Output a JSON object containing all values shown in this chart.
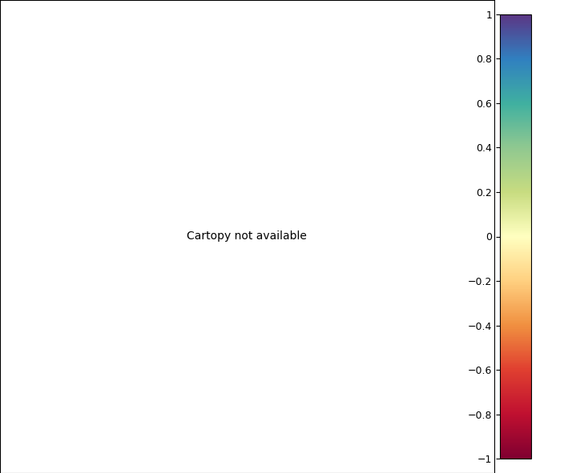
{
  "title": "",
  "colorbar_label": "",
  "vmin": -1,
  "vmax": 1,
  "colorbar_ticks": [
    1,
    0.8,
    0.6,
    0.4,
    0.2,
    0,
    -0.2,
    -0.4,
    -0.6,
    -0.8,
    -1
  ],
  "colorbar_ticklabels": [
    "1",
    "0.8",
    "0.6",
    "0.4",
    "0.2",
    "0",
    "−0.2",
    "−0.4",
    "−0.6",
    "−0.8",
    "−1"
  ],
  "cmap": "RdYlGn",
  "background_color": "#ffffff",
  "border_color": "#000000",
  "fig_width": 7.09,
  "fig_height": 5.91,
  "dpi": 100,
  "map_extent": [
    -25,
    50,
    30,
    75
  ],
  "colorbar_ticks_raw": [
    1,
    0.8,
    0.6,
    0.4,
    0.2,
    0,
    -0.2,
    -0.4,
    -0.6,
    -0.8,
    -1
  ]
}
